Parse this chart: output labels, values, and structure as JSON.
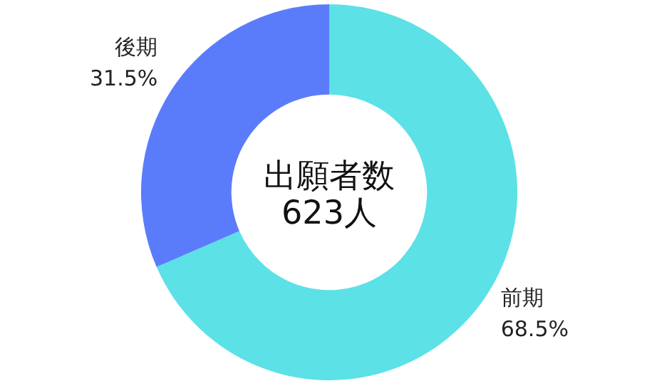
{
  "chart_data": {
    "type": "donut",
    "categories": [
      "前期",
      "後期"
    ],
    "values": [
      68.5,
      31.5
    ],
    "colors": [
      "#5ce1e6",
      "#5b7cfa"
    ],
    "value_labels": [
      "68.5%",
      "31.5%"
    ],
    "annotations": [
      "出願者数",
      "623人"
    ]
  }
}
